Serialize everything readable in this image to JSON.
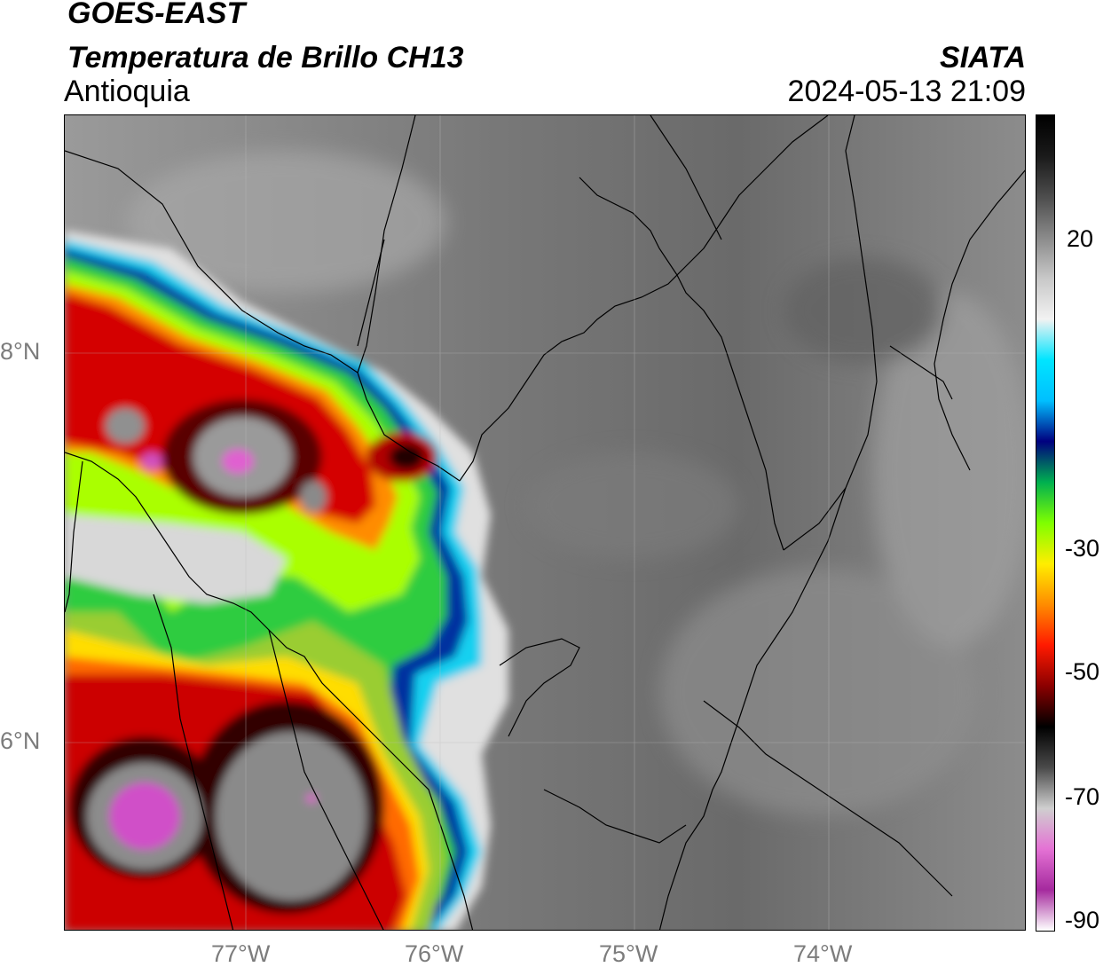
{
  "header": {
    "satellite": "GOES-EAST",
    "product": "Temperatura de Brillo CH13",
    "region": "Antioquia",
    "organization": "SIATA",
    "timestamp": "2024-05-13 21:09"
  },
  "map": {
    "lat_ticks": [
      "8°N",
      "6°N"
    ],
    "lon_ticks": [
      "77°W",
      "76°W",
      "75°W",
      "74°W"
    ]
  },
  "colorbar": {
    "tick_labels": [
      "20",
      "-30",
      "-50",
      "-70",
      "-90"
    ],
    "stops": [
      "#ffffff",
      "#a52a9e",
      "#e472d4",
      "#cfcfcf",
      "#4a4a4a",
      "#000000",
      "#8b0000",
      "#ff1a00",
      "#ff8c00",
      "#ffee00",
      "#7fff00",
      "#00b050",
      "#00007f",
      "#00bfff",
      "#00e5ff",
      "#f2f2f2",
      "#c8c8c8",
      "#8a8a8a",
      "#4d4d4d",
      "#1a1a1a",
      "#000000"
    ]
  },
  "icons": [
    "map-graticule",
    "department-borders"
  ]
}
